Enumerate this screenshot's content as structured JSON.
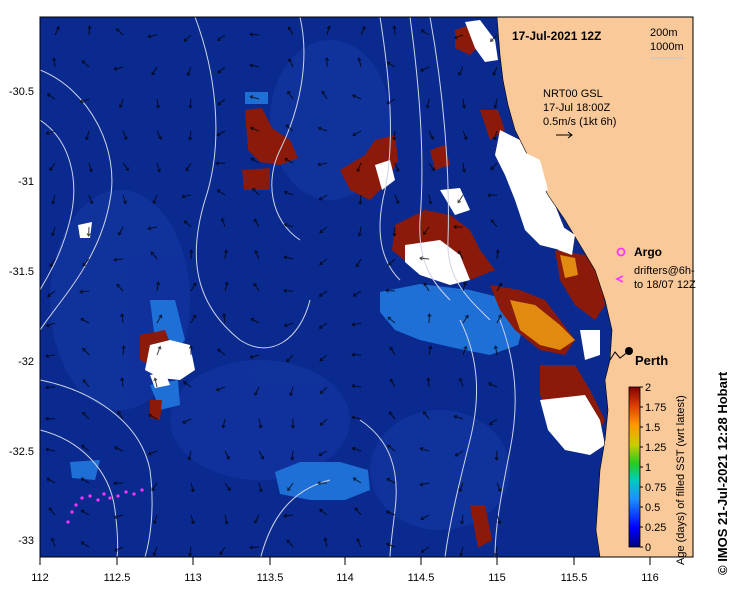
{
  "map": {
    "date_title": "17-Jul-2021 12Z",
    "depth_legend": [
      "200m",
      "1000m"
    ],
    "current_label": [
      "NRT00 GSL",
      "17-Jul 18:00Z",
      "0.5m/s (1kt 6h)"
    ],
    "argo_label": "Argo",
    "drifter_label": [
      "drifters@6h-",
      "to 18/07 12Z"
    ],
    "city": "Perth",
    "x_ticks": [
      "112",
      "112.5",
      "113",
      "113.5",
      "114",
      "114.5",
      "115",
      "115.5",
      "116"
    ],
    "y_ticks": [
      "-30.5",
      "-31",
      "-31.5",
      "-32",
      "-32.5",
      "-33"
    ],
    "colors": {
      "ocean": "#0a2a8f",
      "land": "#f9c99a",
      "cloud": "#ffffff",
      "old": "#8b1a0a",
      "mid": "#1e6fd6",
      "young": "#e08a10",
      "argo": "#ff33ff"
    }
  },
  "colorbar": {
    "title": "Age (days) of filled SST (wrt latest)",
    "ticks": [
      "2",
      "1.75",
      "1.5",
      "1.25",
      "1",
      "0.75",
      "0.5",
      "0.25",
      "0"
    ]
  },
  "credit": "©  IMOS 21-Jul-2021 12:28 Hobart"
}
